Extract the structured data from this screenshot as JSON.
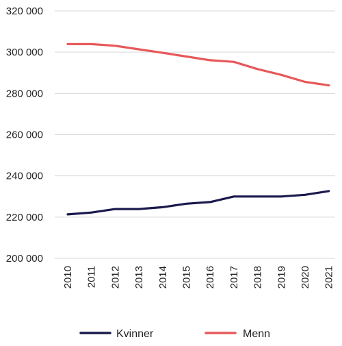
{
  "chart_data": {
    "type": "line",
    "title": "",
    "xlabel": "",
    "ylabel": "",
    "categories": [
      "2010",
      "2011",
      "2012",
      "2013",
      "2014",
      "2015",
      "2016",
      "2017",
      "2018",
      "2019",
      "2020",
      "2021"
    ],
    "ylim": [
      200000,
      320000
    ],
    "yticks": [
      200000,
      220000,
      240000,
      260000,
      280000,
      300000,
      320000
    ],
    "ytick_labels": [
      "200 000",
      "220 000",
      "240 000",
      "260 000",
      "280 000",
      "300 000",
      "320 000"
    ],
    "grid": true,
    "legend_position": "bottom",
    "series": [
      {
        "name": "Kvinner",
        "color": "#1b1a4d",
        "values": [
          221300,
          222200,
          223900,
          223900,
          224800,
          226500,
          227300,
          230000,
          230000,
          230000,
          230800,
          232600
        ]
      },
      {
        "name": "Menn",
        "color": "#e8585a",
        "values": [
          303900,
          303900,
          303100,
          301400,
          299700,
          297900,
          296100,
          295300,
          291800,
          289000,
          285600,
          283900
        ]
      }
    ]
  }
}
